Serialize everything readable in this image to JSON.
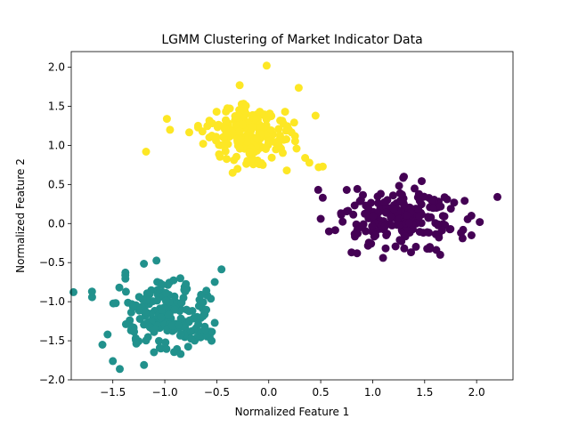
{
  "chart_data": {
    "type": "scatter",
    "title": "LGMM Clustering of Market Indicator Data",
    "xlabel": "Normalized Feature 1",
    "ylabel": "Normalized Feature 2",
    "xlim": [
      -1.9,
      2.35
    ],
    "ylim": [
      -2.0,
      2.2
    ],
    "xticks": [
      -1.5,
      -1.0,
      -0.5,
      0.0,
      0.5,
      1.0,
      1.5,
      2.0
    ],
    "xtick_labels": [
      "−1.5",
      "−1.0",
      "−0.5",
      "0.0",
      "0.5",
      "1.0",
      "1.5",
      "2.0"
    ],
    "yticks": [
      -2.0,
      -1.5,
      -1.0,
      -0.5,
      0.0,
      0.5,
      1.0,
      1.5,
      2.0
    ],
    "ytick_labels": [
      "−2.0",
      "−1.5",
      "−1.0",
      "−0.5",
      "0.0",
      "0.5",
      "1.0",
      "1.5",
      "2.0"
    ],
    "grid": false,
    "legend": "none",
    "series": [
      {
        "color": "#440154",
        "center": [
          1.3,
          0.05
        ],
        "spread": [
          0.28,
          0.2
        ],
        "count": 200,
        "points": [
          [
            2.2,
            0.34
          ],
          [
            0.52,
            0.33
          ],
          [
            0.5,
            0.06
          ],
          [
            0.58,
            -0.1
          ],
          [
            1.65,
            -0.4
          ],
          [
            1.1,
            -0.44
          ],
          [
            1.3,
            0.6
          ],
          [
            1.95,
            0.1
          ],
          [
            0.75,
            0.43
          ],
          [
            1.85,
            -0.12
          ],
          [
            1.55,
            -0.3
          ],
          [
            0.85,
            -0.38
          ]
        ]
      },
      {
        "color": "#21918c",
        "center": [
          -1.0,
          -1.2
        ],
        "spread": [
          0.22,
          0.22
        ],
        "count": 200,
        "points": [
          [
            -1.7,
            -0.87
          ],
          [
            -1.38,
            -0.66
          ],
          [
            -1.5,
            -1.76
          ],
          [
            -1.2,
            -1.81
          ],
          [
            -1.6,
            -1.55
          ],
          [
            -0.52,
            -1.27
          ],
          [
            -0.55,
            -1.5
          ],
          [
            -0.6,
            -0.86
          ],
          [
            -1.55,
            -1.42
          ],
          [
            -0.85,
            -0.7
          ]
        ]
      },
      {
        "color": "#fde725",
        "center": [
          -0.2,
          1.15
        ],
        "spread": [
          0.22,
          0.2
        ],
        "count": 200,
        "points": [
          [
            -0.02,
            2.02
          ],
          [
            -0.98,
            1.34
          ],
          [
            -1.18,
            0.92
          ],
          [
            0.48,
            0.72
          ],
          [
            0.52,
            0.73
          ],
          [
            0.45,
            1.38
          ],
          [
            -0.28,
            1.77
          ],
          [
            0.35,
            0.84
          ],
          [
            -0.95,
            1.2
          ],
          [
            -0.3,
            0.7
          ]
        ]
      }
    ]
  }
}
